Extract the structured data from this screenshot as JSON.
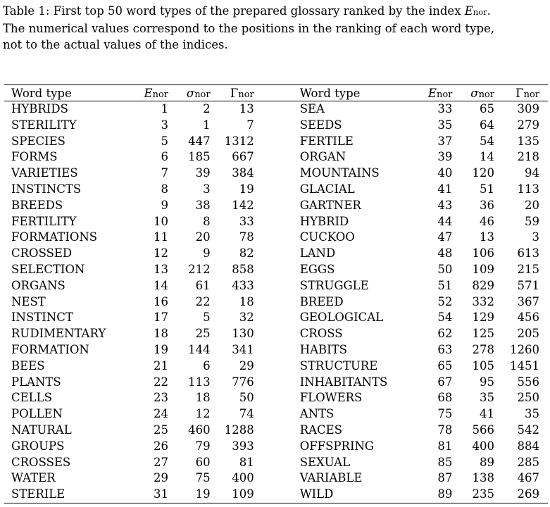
{
  "caption": {
    "line1_text": "Table 1: First top 50 word types of the prepared glossary ranked by the index ",
    "line1_sym": "E",
    "line1_sub": "nor",
    "line1_end": ".",
    "line2": "The numerical values correspond to the positions in the ranking of each word type,",
    "line3": "not to the actual values of the indices."
  },
  "headers": {
    "word_type": "Word type",
    "e_sym": "E",
    "e_sub": "nor",
    "sigma_sym": "σ",
    "sigma_sub": "nor",
    "gamma_sym": "Γ",
    "gamma_sub": "nor"
  },
  "rows": [
    {
      "l": [
        "HYBRIDS",
        "1",
        "2",
        "13"
      ],
      "r": [
        "SEA",
        "33",
        "65",
        "309"
      ]
    },
    {
      "l": [
        "STERILITY",
        "3",
        "1",
        "7"
      ],
      "r": [
        "SEEDS",
        "35",
        "64",
        "279"
      ]
    },
    {
      "l": [
        "SPECIES",
        "5",
        "447",
        "1312"
      ],
      "r": [
        "FERTILE",
        "37",
        "54",
        "135"
      ]
    },
    {
      "l": [
        "FORMS",
        "6",
        "185",
        "667"
      ],
      "r": [
        "ORGAN",
        "39",
        "14",
        "218"
      ]
    },
    {
      "l": [
        "VARIETIES",
        "7",
        "39",
        "384"
      ],
      "r": [
        "MOUNTAINS",
        "40",
        "120",
        "94"
      ]
    },
    {
      "l": [
        "INSTINCTS",
        "8",
        "3",
        "19"
      ],
      "r": [
        "GLACIAL",
        "41",
        "51",
        "113"
      ]
    },
    {
      "l": [
        "BREEDS",
        "9",
        "38",
        "142"
      ],
      "r": [
        "GARTNER",
        "43",
        "36",
        "20"
      ]
    },
    {
      "l": [
        "FERTILITY",
        "10",
        "8",
        "33"
      ],
      "r": [
        "HYBRID",
        "44",
        "46",
        "59"
      ]
    },
    {
      "l": [
        "FORMATIONS",
        "11",
        "20",
        "78"
      ],
      "r": [
        "CUCKOO",
        "47",
        "13",
        "3"
      ]
    },
    {
      "l": [
        "CROSSED",
        "12",
        "9",
        "82"
      ],
      "r": [
        "LAND",
        "48",
        "106",
        "613"
      ]
    },
    {
      "l": [
        "SELECTION",
        "13",
        "212",
        "858"
      ],
      "r": [
        "EGGS",
        "50",
        "109",
        "215"
      ]
    },
    {
      "l": [
        "ORGANS",
        "14",
        "61",
        "433"
      ],
      "r": [
        "STRUGGLE",
        "51",
        "829",
        "571"
      ]
    },
    {
      "l": [
        "NEST",
        "16",
        "22",
        "18"
      ],
      "r": [
        "BREED",
        "52",
        "332",
        "367"
      ]
    },
    {
      "l": [
        "INSTINCT",
        "17",
        "5",
        "32"
      ],
      "r": [
        "GEOLOGICAL",
        "54",
        "129",
        "456"
      ]
    },
    {
      "l": [
        "RUDIMENTARY",
        "18",
        "25",
        "130"
      ],
      "r": [
        "CROSS",
        "62",
        "125",
        "205"
      ]
    },
    {
      "l": [
        "FORMATION",
        "19",
        "144",
        "341"
      ],
      "r": [
        "HABITS",
        "63",
        "278",
        "1260"
      ]
    },
    {
      "l": [
        "BEES",
        "21",
        "6",
        "29"
      ],
      "r": [
        "STRUCTURE",
        "65",
        "105",
        "1451"
      ]
    },
    {
      "l": [
        "PLANTS",
        "22",
        "113",
        "776"
      ],
      "r": [
        "INHABITANTS",
        "67",
        "95",
        "556"
      ]
    },
    {
      "l": [
        "CELLS",
        "23",
        "18",
        "50"
      ],
      "r": [
        "FLOWERS",
        "68",
        "35",
        "250"
      ]
    },
    {
      "l": [
        "POLLEN",
        "24",
        "12",
        "74"
      ],
      "r": [
        "ANTS",
        "75",
        "41",
        "35"
      ]
    },
    {
      "l": [
        "NATURAL",
        "25",
        "460",
        "1288"
      ],
      "r": [
        "RACES",
        "78",
        "566",
        "542"
      ]
    },
    {
      "l": [
        "GROUPS",
        "26",
        "79",
        "393"
      ],
      "r": [
        "OFFSPRING",
        "81",
        "400",
        "884"
      ]
    },
    {
      "l": [
        "CROSSES",
        "27",
        "60",
        "81"
      ],
      "r": [
        "SEXUAL",
        "85",
        "89",
        "285"
      ]
    },
    {
      "l": [
        "WATER",
        "29",
        "75",
        "400"
      ],
      "r": [
        "VARIABLE",
        "87",
        "138",
        "467"
      ]
    },
    {
      "l": [
        "STERILE",
        "31",
        "19",
        "109"
      ],
      "r": [
        "WILD",
        "89",
        "235",
        "269"
      ]
    }
  ]
}
